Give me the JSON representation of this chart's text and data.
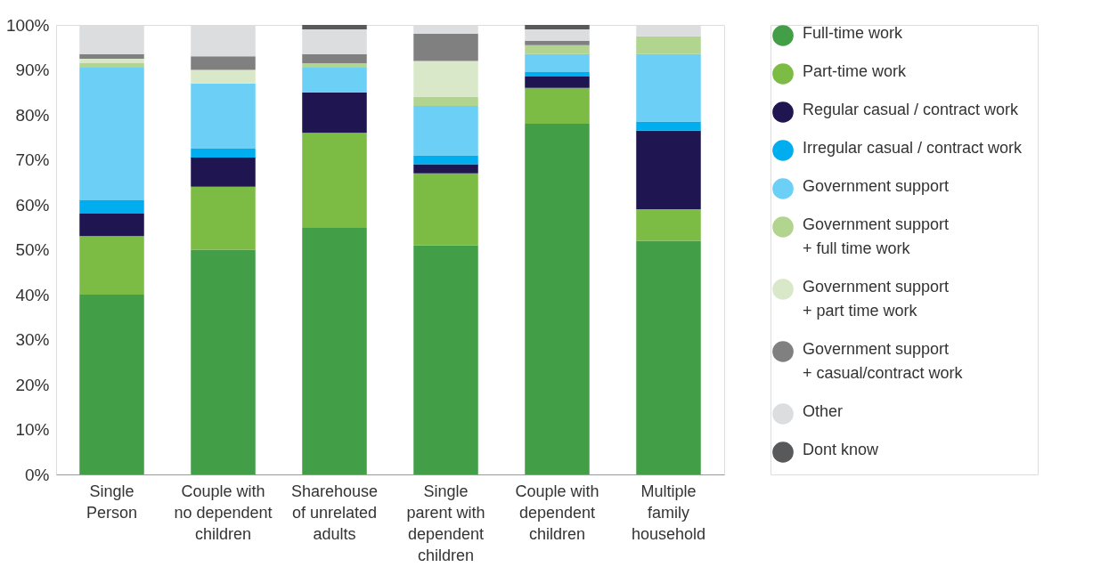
{
  "chart_data": {
    "type": "bar",
    "stacked": true,
    "legend": "right",
    "grid": false,
    "categories": [
      "Single Person",
      "Couple with no dependent children",
      "Sharehouse of unrelated adults",
      "Single parent with dependent children",
      "Couple with dependent children",
      "Multiple family household"
    ],
    "ylim": [
      0,
      100
    ],
    "yticks": [
      {
        "value": 0,
        "label": "0%"
      },
      {
        "value": 10,
        "label": "10%"
      },
      {
        "value": 20,
        "label": "20%"
      },
      {
        "value": 30,
        "label": "30%"
      },
      {
        "value": 40,
        "label": "40%"
      },
      {
        "value": 50,
        "label": "50%"
      },
      {
        "value": 60,
        "label": "60%"
      },
      {
        "value": 70,
        "label": "70%"
      },
      {
        "value": 80,
        "label": "80%"
      },
      {
        "value": 90,
        "label": "90%"
      },
      {
        "value": 100,
        "label": "100%"
      }
    ],
    "series": [
      {
        "name": "Full-time work",
        "color": "#439f47",
        "values": [
          40,
          50,
          55,
          51,
          78,
          52
        ]
      },
      {
        "name": "Part-time work",
        "color": "#7cbb44",
        "values": [
          13,
          14,
          21,
          16,
          8,
          7
        ]
      },
      {
        "name": "Regular casual / contract work",
        "color": "#1e1551",
        "values": [
          5,
          6.5,
          9,
          2,
          2.5,
          17.5
        ]
      },
      {
        "name": "Irregular casual / contract work",
        "color": "#00aeef",
        "values": [
          3,
          2,
          0,
          2,
          1,
          2
        ]
      },
      {
        "name": "Government support",
        "color": "#6ccff6",
        "values": [
          29.5,
          14.5,
          5.5,
          11,
          4,
          15
        ]
      },
      {
        "name": "Government support + full time work",
        "color": "#b1d58f",
        "values": [
          1,
          0,
          1,
          2,
          2,
          4
        ]
      },
      {
        "name": "Government support + part time work",
        "color": "#d9e8c8",
        "values": [
          1,
          3,
          0,
          8,
          0,
          0
        ]
      },
      {
        "name": "Government support + casual/contract work",
        "color": "#7f807f",
        "values": [
          1,
          3,
          2,
          6,
          1,
          0
        ]
      },
      {
        "name": "Other",
        "color": "#dcdddf",
        "values": [
          6.5,
          7,
          5.5,
          2,
          2.5,
          2.5
        ]
      },
      {
        "name": "Dont know",
        "color": "#58595b",
        "values": [
          0,
          0,
          1,
          0,
          1,
          0
        ]
      }
    ]
  }
}
